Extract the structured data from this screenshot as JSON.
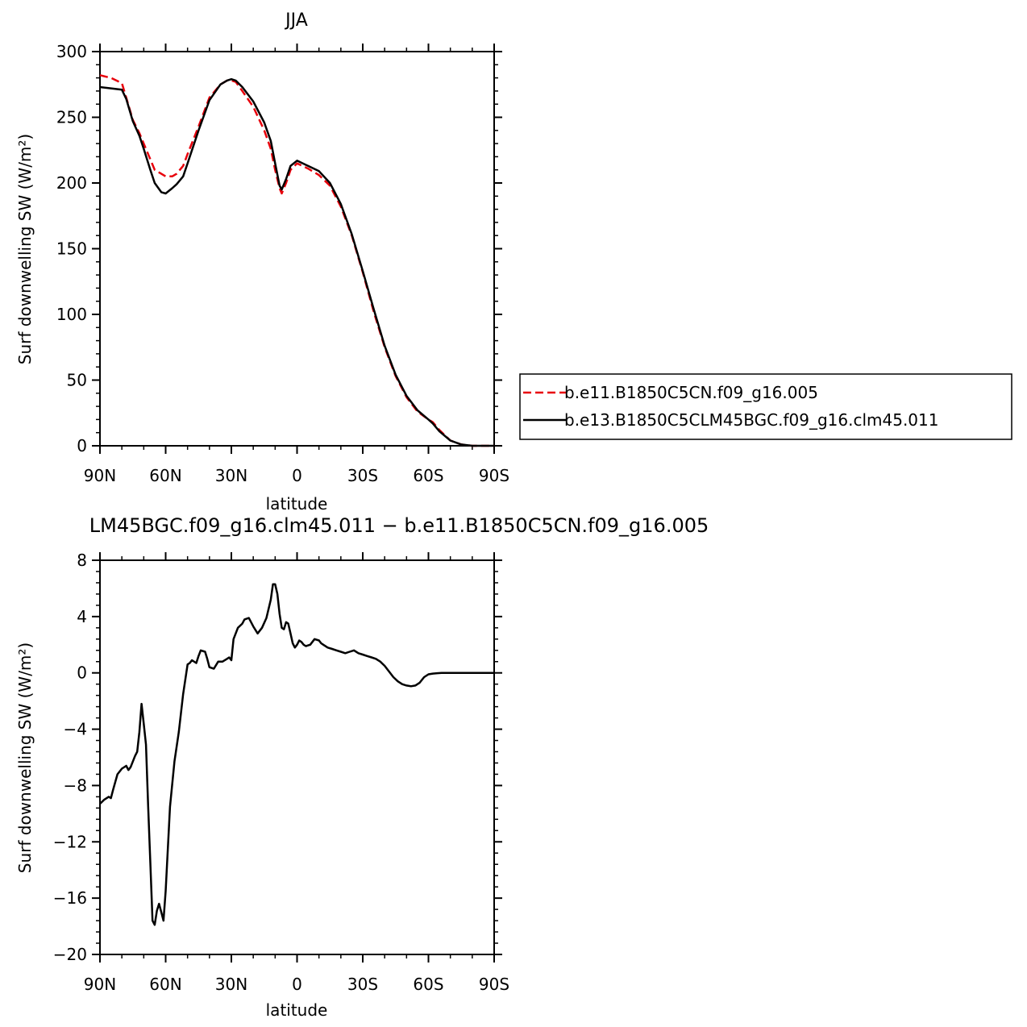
{
  "chart_data": [
    {
      "type": "line",
      "title": "JJA",
      "xlabel": "latitude",
      "ylabel": "Surf downwelling SW (W/m²)",
      "xlim": [
        90,
        -90
      ],
      "ylim": [
        0,
        300
      ],
      "x_ticks": [
        90,
        60,
        30,
        0,
        -30,
        -60,
        -90
      ],
      "x_tick_labels": [
        "90N",
        "60N",
        "30N",
        "0",
        "30S",
        "60S",
        "90S"
      ],
      "y_ticks": [
        0,
        50,
        100,
        150,
        200,
        250,
        300
      ],
      "y_tick_labels": [
        "0",
        "50",
        "100",
        "150",
        "200",
        "250",
        "300"
      ],
      "legend": "right",
      "series": [
        {
          "name": "b.e11.B1850C5CN.f09_g16.005",
          "color": "#e8000b",
          "style": "dashed",
          "x": [
            90,
            85,
            80,
            78,
            75,
            72,
            70,
            67,
            65,
            62,
            60,
            57,
            55,
            52,
            50,
            45,
            40,
            35,
            32,
            30,
            28,
            25,
            20,
            15,
            12,
            10,
            8,
            7,
            5,
            3,
            0,
            -5,
            -10,
            -15,
            -20,
            -25,
            -30,
            -35,
            -40,
            -45,
            -50,
            -55,
            -60,
            -62,
            -65,
            -70,
            -75,
            -80,
            -85,
            -90
          ],
          "y": [
            282,
            280,
            276,
            265,
            248,
            238,
            230,
            218,
            210,
            207,
            205,
            205,
            207,
            213,
            222,
            243,
            265,
            275,
            278,
            278,
            277,
            270,
            258,
            240,
            226,
            210,
            196,
            192,
            200,
            210,
            215,
            211,
            206,
            198,
            182,
            160,
            132,
            102,
            75,
            53,
            37,
            26,
            20,
            18,
            12,
            4,
            1,
            0,
            0,
            0
          ]
        },
        {
          "name": "b.e13.B1850C5CLM45BGC.f09_g16.clm45.011",
          "color": "#000000",
          "style": "solid",
          "x": [
            90,
            85,
            80,
            78,
            75,
            72,
            70,
            67,
            65,
            62,
            60,
            57,
            55,
            52,
            50,
            45,
            40,
            35,
            32,
            30,
            28,
            25,
            20,
            15,
            12,
            10,
            8,
            7,
            5,
            3,
            0,
            -5,
            -10,
            -15,
            -20,
            -25,
            -30,
            -35,
            -40,
            -45,
            -50,
            -55,
            -60,
            -62,
            -65,
            -70,
            -75,
            -80,
            -85,
            -90
          ],
          "y": [
            273,
            272,
            271,
            264,
            247,
            236,
            226,
            210,
            200,
            193,
            192,
            196,
            199,
            205,
            215,
            240,
            263,
            275,
            278,
            279,
            278,
            273,
            262,
            246,
            232,
            215,
            198,
            195,
            203,
            213,
            217,
            213,
            209,
            200,
            184,
            161,
            133,
            104,
            76,
            54,
            38,
            27,
            20,
            17,
            11,
            4,
            1,
            0,
            0,
            0
          ]
        }
      ]
    },
    {
      "type": "line",
      "title": "LM45BGC.f09_g16.clm45.011  −  b.e11.B1850C5CN.f09_g16.005",
      "xlabel": "latitude",
      "ylabel": "Surf downwelling SW (W/m²)",
      "xlim": [
        90,
        -90
      ],
      "ylim": [
        -20,
        8
      ],
      "x_ticks": [
        90,
        60,
        30,
        0,
        -30,
        -60,
        -90
      ],
      "x_tick_labels": [
        "90N",
        "60N",
        "30N",
        "0",
        "30S",
        "60S",
        "90S"
      ],
      "y_ticks": [
        8,
        4,
        0,
        -4,
        -8,
        -12,
        -16,
        -20
      ],
      "y_tick_labels": [
        "8",
        "4",
        "0",
        "−4",
        "−8",
        "−12",
        "−16",
        "−20"
      ],
      "series": [
        {
          "color": "#000000",
          "style": "solid",
          "x": [
            90,
            88,
            86,
            85,
            84,
            82,
            80,
            78,
            77,
            76,
            74,
            73,
            72,
            71,
            70,
            69,
            68,
            67,
            66,
            65,
            64,
            63,
            62,
            61,
            60,
            58,
            56,
            54,
            52,
            50,
            49,
            48,
            46,
            45,
            44,
            42,
            41,
            40,
            38,
            36,
            34,
            32,
            31,
            30,
            29,
            27,
            25,
            24,
            22,
            20,
            18,
            16,
            14,
            12,
            11,
            10,
            9,
            8,
            7,
            6,
            5,
            4,
            3,
            2,
            1,
            0,
            -1,
            -2,
            -3,
            -4,
            -6,
            -8,
            -10,
            -11,
            -12,
            -14,
            -16,
            -18,
            -20,
            -22,
            -24,
            -26,
            -28,
            -30,
            -32,
            -34,
            -36,
            -38,
            -40,
            -42,
            -44,
            -46,
            -48,
            -50,
            -52,
            -54,
            -56,
            -58,
            -60,
            -62,
            -64,
            -66,
            -68,
            -70,
            -75,
            -80,
            -85,
            -90
          ],
          "y": [
            -9.3,
            -9.0,
            -8.8,
            -8.9,
            -8.3,
            -7.2,
            -6.8,
            -6.6,
            -6.9,
            -6.7,
            -5.9,
            -5.6,
            -4.2,
            -2.2,
            -3.6,
            -5.1,
            -9.5,
            -13.5,
            -17.6,
            -17.9,
            -16.9,
            -16.4,
            -17.0,
            -17.6,
            -15.5,
            -9.5,
            -6.3,
            -4.2,
            -1.5,
            0.6,
            0.7,
            0.9,
            0.7,
            1.2,
            1.6,
            1.5,
            1.0,
            0.4,
            0.3,
            0.8,
            0.8,
            1.0,
            1.1,
            0.9,
            2.4,
            3.2,
            3.5,
            3.8,
            3.9,
            3.3,
            2.8,
            3.2,
            3.9,
            5.2,
            6.3,
            6.3,
            5.6,
            4.2,
            3.2,
            3.1,
            3.6,
            3.5,
            2.8,
            2.1,
            1.8,
            2.0,
            2.3,
            2.2,
            2.0,
            1.9,
            2.0,
            2.4,
            2.3,
            2.1,
            2.0,
            1.8,
            1.7,
            1.6,
            1.5,
            1.4,
            1.5,
            1.6,
            1.4,
            1.3,
            1.2,
            1.1,
            1.0,
            0.8,
            0.5,
            0.1,
            -0.3,
            -0.6,
            -0.8,
            -0.9,
            -0.95,
            -0.9,
            -0.7,
            -0.3,
            -0.1,
            -0.05,
            -0.02,
            0.0,
            0.0,
            0.0,
            0.0,
            0.0,
            0.0,
            0.0
          ]
        }
      ]
    }
  ]
}
